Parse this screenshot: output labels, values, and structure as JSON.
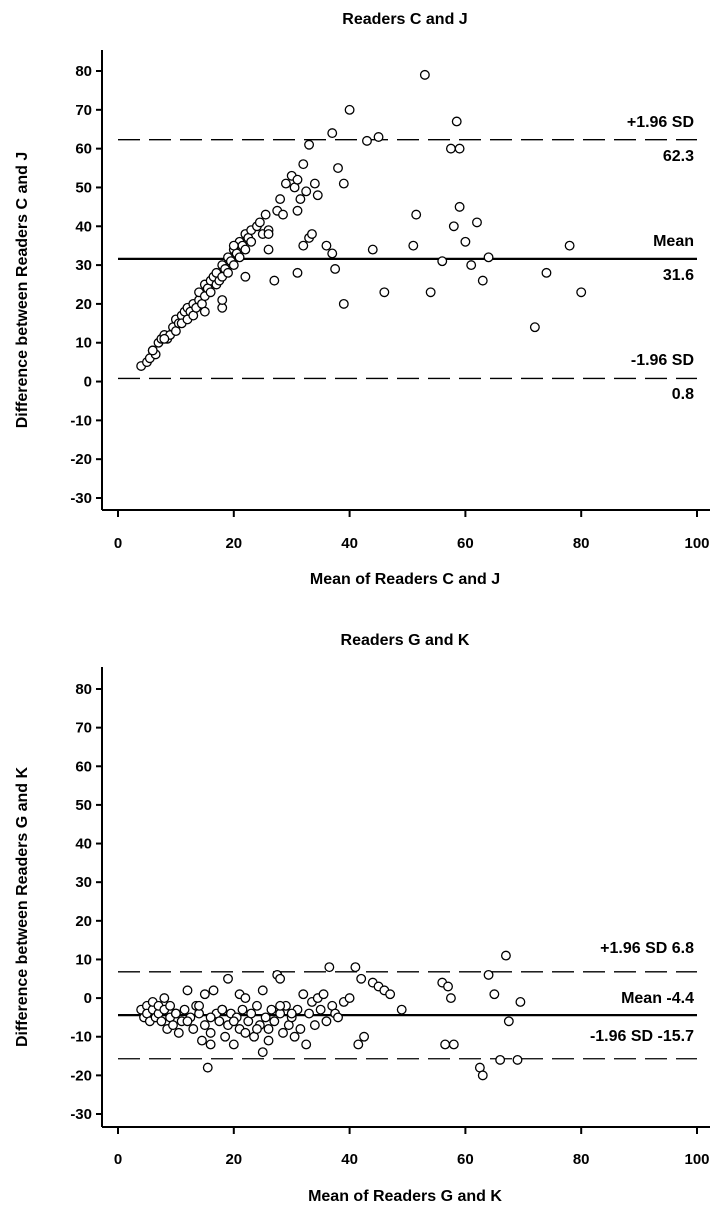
{
  "chart_data": [
    {
      "type": "scatter",
      "title": "Readers C and J",
      "xlabel": "Mean of Readers C and J",
      "ylabel": "Difference between Readers C and J",
      "xlim": [
        0,
        100
      ],
      "ylim": [
        -35,
        85
      ],
      "x_ticks": [
        "0",
        "20",
        "40",
        "60",
        "80",
        "100"
      ],
      "y_ticks": [
        "80",
        "70",
        "60",
        "50",
        "40",
        "30",
        "20",
        "10",
        "0",
        "-10",
        "-20",
        "-30"
      ],
      "mean": 31.6,
      "upper_loa": 62.3,
      "lower_loa": 0.8,
      "annotations": {
        "upper_label": "+1.96 SD",
        "upper_value": "62.3",
        "mean_label": "Mean",
        "mean_value": "31.6",
        "lower_label": "-1.96 SD",
        "lower_value": "0.8"
      },
      "points": [
        [
          4,
          4
        ],
        [
          5,
          5
        ],
        [
          5.5,
          6
        ],
        [
          6,
          8
        ],
        [
          6.5,
          7
        ],
        [
          7,
          10
        ],
        [
          7.5,
          11
        ],
        [
          8,
          12
        ],
        [
          8.5,
          11
        ],
        [
          9,
          12
        ],
        [
          9.5,
          14
        ],
        [
          10,
          13
        ],
        [
          10,
          16
        ],
        [
          10.5,
          15
        ],
        [
          11,
          17
        ],
        [
          11,
          15
        ],
        [
          11.5,
          18
        ],
        [
          12,
          16
        ],
        [
          12,
          19
        ],
        [
          12.5,
          18
        ],
        [
          13,
          20
        ],
        [
          13,
          17
        ],
        [
          13.5,
          19
        ],
        [
          14,
          21
        ],
        [
          14,
          23
        ],
        [
          14.5,
          20
        ],
        [
          15,
          22
        ],
        [
          15,
          25
        ],
        [
          15.5,
          24
        ],
        [
          16,
          26
        ],
        [
          16,
          23
        ],
        [
          16.5,
          27
        ],
        [
          17,
          25
        ],
        [
          17,
          28
        ],
        [
          17.5,
          26
        ],
        [
          18,
          30
        ],
        [
          18,
          27
        ],
        [
          18.5,
          29
        ],
        [
          19,
          32
        ],
        [
          19,
          28
        ],
        [
          19.5,
          31
        ],
        [
          20,
          34
        ],
        [
          20,
          30
        ],
        [
          20.5,
          33
        ],
        [
          21,
          36
        ],
        [
          21,
          32
        ],
        [
          21.5,
          35
        ],
        [
          22,
          38
        ],
        [
          22,
          34
        ],
        [
          22.5,
          37
        ],
        [
          23,
          39
        ],
        [
          23,
          36
        ],
        [
          24,
          40
        ],
        [
          24.5,
          41
        ],
        [
          25,
          38
        ],
        [
          25.5,
          43
        ],
        [
          26,
          39
        ],
        [
          26,
          34
        ],
        [
          27,
          26
        ],
        [
          27.5,
          44
        ],
        [
          28,
          47
        ],
        [
          28.5,
          43
        ],
        [
          29,
          51
        ],
        [
          30,
          53
        ],
        [
          30.5,
          50
        ],
        [
          31,
          52
        ],
        [
          31,
          44
        ],
        [
          31.5,
          47
        ],
        [
          32,
          56
        ],
        [
          32,
          35
        ],
        [
          32.5,
          49
        ],
        [
          33,
          61
        ],
        [
          33,
          37
        ],
        [
          33.5,
          38
        ],
        [
          34,
          51
        ],
        [
          34.5,
          48
        ],
        [
          36,
          35
        ],
        [
          37,
          64
        ],
        [
          37.5,
          29
        ],
        [
          38,
          55
        ],
        [
          39,
          51
        ],
        [
          39,
          20
        ],
        [
          40,
          70
        ],
        [
          43,
          62
        ],
        [
          44,
          34
        ],
        [
          45,
          63
        ],
        [
          46,
          23
        ],
        [
          51,
          35
        ],
        [
          51.5,
          43
        ],
        [
          53,
          79
        ],
        [
          54,
          23
        ],
        [
          56,
          31
        ],
        [
          57.5,
          60
        ],
        [
          58,
          40
        ],
        [
          58.5,
          67
        ],
        [
          59,
          60
        ],
        [
          59,
          45
        ],
        [
          60,
          36
        ],
        [
          61,
          30
        ],
        [
          62,
          41
        ],
        [
          63,
          26
        ],
        [
          64,
          32
        ],
        [
          72,
          14
        ],
        [
          74,
          28
        ],
        [
          78,
          35
        ],
        [
          80,
          23
        ],
        [
          6,
          8
        ],
        [
          8,
          11
        ],
        [
          15,
          18
        ],
        [
          18,
          19
        ],
        [
          18,
          21
        ],
        [
          20,
          35
        ],
        [
          22,
          27
        ],
        [
          26,
          38
        ],
        [
          31,
          28
        ],
        [
          37,
          33
        ]
      ]
    },
    {
      "type": "scatter",
      "title": "Readers G and K",
      "xlabel": "Mean of Readers G and K",
      "ylabel": "Difference between Readers G and K",
      "xlim": [
        0,
        100
      ],
      "ylim": [
        -35,
        85
      ],
      "x_ticks": [
        "0",
        "20",
        "40",
        "60",
        "80",
        "100"
      ],
      "y_ticks": [
        "80",
        "70",
        "60",
        "50",
        "40",
        "30",
        "20",
        "10",
        "0",
        "-10",
        "-20",
        "-30"
      ],
      "mean": -4.4,
      "upper_loa": 6.8,
      "lower_loa": -15.7,
      "annotations": {
        "upper_label": "+1.96 SD 6.8",
        "mean_label": "Mean -4.4",
        "lower_label": "-1.96 SD -15.7"
      },
      "points": [
        [
          4,
          -3
        ],
        [
          4.5,
          -5
        ],
        [
          5,
          -2
        ],
        [
          5,
          -4
        ],
        [
          5.5,
          -6
        ],
        [
          6,
          -3
        ],
        [
          6,
          -1
        ],
        [
          6.5,
          -5
        ],
        [
          7,
          -4
        ],
        [
          7,
          -2
        ],
        [
          7.5,
          -6
        ],
        [
          8,
          -3
        ],
        [
          8,
          0
        ],
        [
          8.5,
          -8
        ],
        [
          9,
          -5
        ],
        [
          9,
          -2
        ],
        [
          9.5,
          -7
        ],
        [
          10,
          -4
        ],
        [
          10.5,
          -9
        ],
        [
          11,
          -6
        ],
        [
          11.5,
          -3
        ],
        [
          12,
          2
        ],
        [
          12.5,
          -5
        ],
        [
          13,
          -8
        ],
        [
          13.5,
          -2
        ],
        [
          14,
          -4
        ],
        [
          14.5,
          -11
        ],
        [
          15,
          -7
        ],
        [
          15,
          1
        ],
        [
          15.5,
          -18
        ],
        [
          16,
          -12
        ],
        [
          16,
          -9
        ],
        [
          16.5,
          2
        ],
        [
          17,
          -4
        ],
        [
          17.5,
          -6
        ],
        [
          18,
          -3
        ],
        [
          18.5,
          -10
        ],
        [
          19,
          -7
        ],
        [
          19,
          5
        ],
        [
          19.5,
          -4
        ],
        [
          20,
          -12
        ],
        [
          20.5,
          -5
        ],
        [
          21,
          -8
        ],
        [
          21,
          1
        ],
        [
          21.5,
          -3
        ],
        [
          22,
          -9
        ],
        [
          22,
          0
        ],
        [
          22.5,
          -6
        ],
        [
          23,
          -4
        ],
        [
          23.5,
          -10
        ],
        [
          24,
          -2
        ],
        [
          24.5,
          -7
        ],
        [
          25,
          2
        ],
        [
          25,
          -14
        ],
        [
          25.5,
          -5
        ],
        [
          26,
          -8
        ],
        [
          26.5,
          -3
        ],
        [
          27,
          -6
        ],
        [
          27.5,
          6
        ],
        [
          28,
          5
        ],
        [
          28,
          -4
        ],
        [
          28.5,
          -9
        ],
        [
          29,
          -2
        ],
        [
          29.5,
          -7
        ],
        [
          30,
          -5
        ],
        [
          30.5,
          -10
        ],
        [
          31,
          -3
        ],
        [
          31.5,
          -8
        ],
        [
          32,
          1
        ],
        [
          32.5,
          -12
        ],
        [
          33,
          -4
        ],
        [
          33.5,
          -1
        ],
        [
          34,
          -7
        ],
        [
          34.5,
          0
        ],
        [
          35,
          -3
        ],
        [
          35.5,
          1
        ],
        [
          36,
          -6
        ],
        [
          36.5,
          8
        ],
        [
          37,
          -2
        ],
        [
          37.5,
          -4
        ],
        [
          38,
          -5
        ],
        [
          39,
          -1
        ],
        [
          40,
          0
        ],
        [
          41,
          8
        ],
        [
          41.5,
          -12
        ],
        [
          42,
          5
        ],
        [
          42.5,
          -10
        ],
        [
          44,
          4
        ],
        [
          45,
          3
        ],
        [
          46,
          2
        ],
        [
          47,
          1
        ],
        [
          49,
          -3
        ],
        [
          56,
          4
        ],
        [
          56.5,
          -12
        ],
        [
          57,
          3
        ],
        [
          57.5,
          0
        ],
        [
          58,
          -12
        ],
        [
          62.5,
          -18
        ],
        [
          63,
          -20
        ],
        [
          64,
          6
        ],
        [
          65,
          1
        ],
        [
          66,
          -16
        ],
        [
          67,
          11
        ],
        [
          67.5,
          -6
        ],
        [
          69,
          -16
        ],
        [
          69.5,
          -1
        ],
        [
          10,
          -4
        ],
        [
          12,
          -6
        ],
        [
          14,
          -2
        ],
        [
          16,
          -5
        ],
        [
          18,
          -3
        ],
        [
          20,
          -6
        ],
        [
          24,
          -8
        ],
        [
          26,
          -11
        ],
        [
          28,
          -2
        ],
        [
          30,
          -4
        ]
      ]
    }
  ]
}
